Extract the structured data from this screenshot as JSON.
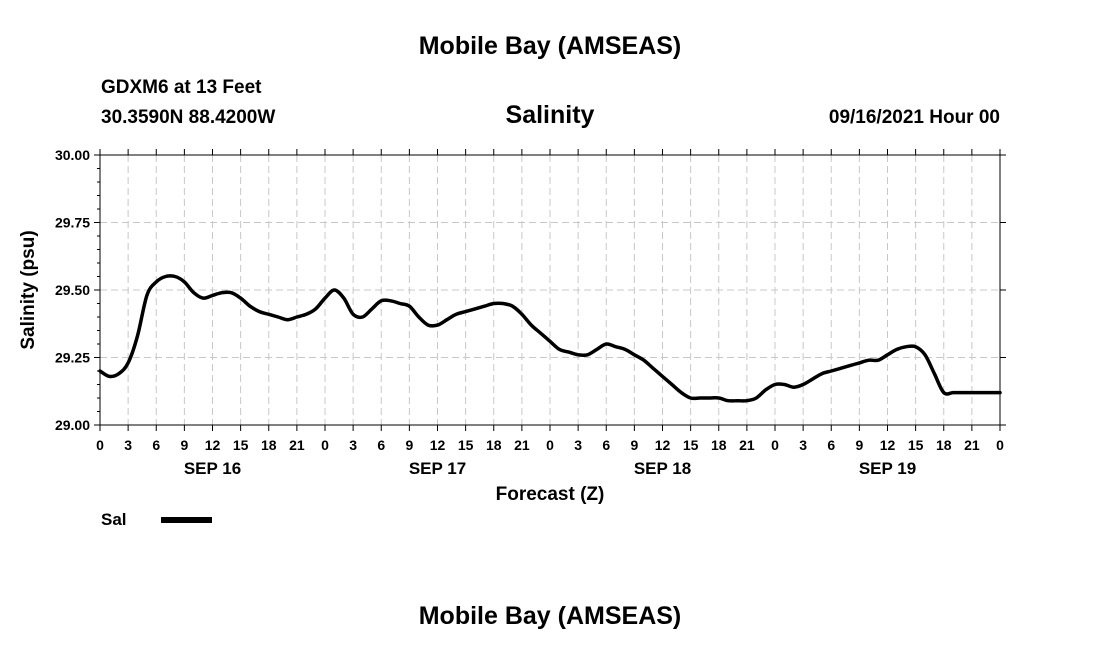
{
  "header": {
    "title": "Mobile Bay (AMSEAS)",
    "station": "GDXM6 at 13 Feet",
    "location": "30.3590N  88.4200W",
    "variable": "Salinity",
    "datetime": "09/16/2021 Hour 00"
  },
  "footer": {
    "title": "Mobile Bay (AMSEAS)"
  },
  "chart_data": {
    "type": "line",
    "title": "Salinity",
    "xlabel": "Forecast (Z)",
    "ylabel": "Salinity (psu)",
    "ylim": [
      29.0,
      30.0
    ],
    "yticks": [
      "29.00",
      "29.25",
      "29.50",
      "29.75",
      "30.00"
    ],
    "xlim": [
      0,
      96
    ],
    "xtick_labels": [
      "0",
      "3",
      "6",
      "9",
      "12",
      "15",
      "18",
      "21",
      "0",
      "3",
      "6",
      "9",
      "12",
      "15",
      "18",
      "21",
      "0",
      "3",
      "6",
      "9",
      "12",
      "15",
      "18",
      "21",
      "0",
      "3",
      "6",
      "9",
      "12",
      "15",
      "18",
      "21",
      "0"
    ],
    "day_labels": [
      {
        "label": "SEP 16",
        "hour": 12
      },
      {
        "label": "SEP 17",
        "hour": 36
      },
      {
        "label": "SEP 18",
        "hour": 60
      },
      {
        "label": "SEP 19",
        "hour": 84
      }
    ],
    "grid": true,
    "legend_position": "bottom-left",
    "series": [
      {
        "name": "Sal",
        "color": "#000000",
        "x": [
          0,
          1,
          2,
          3,
          4,
          5,
          6,
          7,
          8,
          9,
          10,
          11,
          12,
          13,
          14,
          15,
          16,
          17,
          18,
          19,
          20,
          21,
          22,
          23,
          24,
          25,
          26,
          27,
          28,
          29,
          30,
          31,
          32,
          33,
          34,
          35,
          36,
          37,
          38,
          39,
          40,
          41,
          42,
          43,
          44,
          45,
          46,
          47,
          48,
          49,
          50,
          51,
          52,
          53,
          54,
          55,
          56,
          57,
          58,
          59,
          60,
          61,
          62,
          63,
          64,
          65,
          66,
          67,
          68,
          69,
          70,
          71,
          72,
          73,
          74,
          75,
          76,
          77,
          78,
          79,
          80,
          81,
          82,
          83,
          84,
          85,
          86,
          87,
          88,
          89,
          90,
          91,
          92,
          93,
          94,
          95,
          96
        ],
        "values": [
          29.2,
          29.18,
          29.19,
          29.23,
          29.33,
          29.48,
          29.53,
          29.55,
          29.55,
          29.53,
          29.49,
          29.47,
          29.48,
          29.49,
          29.49,
          29.47,
          29.44,
          29.42,
          29.41,
          29.4,
          29.39,
          29.4,
          29.41,
          29.43,
          29.47,
          29.5,
          29.47,
          29.41,
          29.4,
          29.43,
          29.46,
          29.46,
          29.45,
          29.44,
          29.4,
          29.37,
          29.37,
          29.39,
          29.41,
          29.42,
          29.43,
          29.44,
          29.45,
          29.45,
          29.44,
          29.41,
          29.37,
          29.34,
          29.31,
          29.28,
          29.27,
          29.26,
          29.26,
          29.28,
          29.3,
          29.29,
          29.28,
          29.26,
          29.24,
          29.21,
          29.18,
          29.15,
          29.12,
          29.1,
          29.1,
          29.1,
          29.1,
          29.09,
          29.09,
          29.09,
          29.1,
          29.13,
          29.15,
          29.15,
          29.14,
          29.15,
          29.17,
          29.19,
          29.2,
          29.21,
          29.22,
          29.23,
          29.24,
          29.24,
          29.26,
          29.28,
          29.29,
          29.29,
          29.26,
          29.19,
          29.12,
          29.12,
          29.12,
          29.12,
          29.12,
          29.12,
          29.12
        ]
      }
    ]
  }
}
